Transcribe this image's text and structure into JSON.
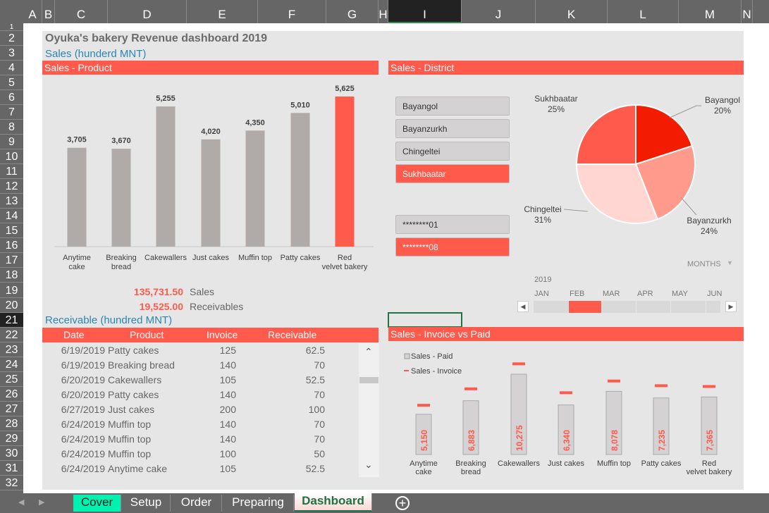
{
  "columns": [
    "A",
    "B",
    "C",
    "D",
    "E",
    "F",
    "G",
    "H",
    "I",
    "J",
    "K",
    "L",
    "M",
    "N"
  ],
  "rows": [
    "1",
    "2",
    "3",
    "4",
    "5",
    "6",
    "7",
    "8",
    "9",
    "10",
    "11",
    "12",
    "13",
    "14",
    "15",
    "16",
    "17",
    "18",
    "19",
    "20",
    "21",
    "22",
    "23",
    "24",
    "25",
    "26",
    "27",
    "28",
    "29",
    "30",
    "31",
    "32"
  ],
  "title": "Oyuka's bakery Revenue dashboard 2019",
  "sales_subtitle": "Sales (hunderd MNT)",
  "receivable_subtitle": "Receivable (hundred MNT)",
  "banners": {
    "product": "Sales - Product",
    "district": "Sales - District",
    "invoice": "Sales - Invoice vs Paid"
  },
  "totals": {
    "sales_value": "135,731.50",
    "sales_label": "Sales",
    "receivables_value": "19,525.00",
    "receivables_label": "Receivables"
  },
  "slicers": {
    "districts": [
      {
        "label": "Bayangol",
        "selected": false
      },
      {
        "label": "Bayanzurkh",
        "selected": false
      },
      {
        "label": "Chingeltei",
        "selected": false
      },
      {
        "label": "Sukhbaatar",
        "selected": true
      }
    ],
    "codes": [
      {
        "label": "********01",
        "selected": false
      },
      {
        "label": "********08",
        "selected": true
      }
    ]
  },
  "timeline": {
    "level": "MONTHS",
    "year": "2019",
    "months": [
      "JAN",
      "FEB",
      "MAR",
      "APR",
      "MAY",
      "JUN"
    ],
    "selected": "FEB"
  },
  "table": {
    "headers": [
      "Date",
      "Product",
      "Invoice",
      "Receivable"
    ],
    "rows": [
      [
        "6/19/2019",
        "Patty cakes",
        "125",
        "62.5"
      ],
      [
        "6/19/2019",
        "Breaking bread",
        "140",
        "70"
      ],
      [
        "6/20/2019",
        "Cakewallers",
        "105",
        "52.5"
      ],
      [
        "6/20/2019",
        "Patty cakes",
        "140",
        "70"
      ],
      [
        "6/27/2019",
        "Just cakes",
        "200",
        "100"
      ],
      [
        "6/24/2019",
        "Muffin top",
        "140",
        "70"
      ],
      [
        "6/24/2019",
        "Muffin top",
        "140",
        "70"
      ],
      [
        "6/24/2019",
        "Muffin top",
        "100",
        "50"
      ],
      [
        "6/24/2019",
        "Anytime cake",
        "105",
        "52.5"
      ]
    ]
  },
  "chart_data": [
    {
      "type": "bar",
      "categories": [
        "Anytime cake",
        "Breaking bread",
        "Cakewallers",
        "Just cakes",
        "Muffin top",
        "Patty cakes",
        "Red velvet bakery"
      ],
      "values": [
        3705,
        3670,
        5255,
        4020,
        4350,
        5010,
        5625
      ],
      "labels": [
        "3,705",
        "3,670",
        "5,255",
        "4,020",
        "4,350",
        "5,010",
        "5,625"
      ],
      "highlight": "Red velvet bakery",
      "colors": {
        "bar": "#b0aba9",
        "highlight": "#ff5a4b"
      }
    },
    {
      "type": "pie",
      "categories": [
        "Bayangol",
        "Bayanzurkh",
        "Chingeltei",
        "Sukhbaatar"
      ],
      "values": [
        20,
        24,
        31,
        25
      ],
      "labels": [
        "20%",
        "24%",
        "31%",
        "25%"
      ],
      "colors": [
        "#f41c00",
        "#ff9a8c",
        "#ffd6d2",
        "#ff5a4b"
      ]
    },
    {
      "type": "bar",
      "categories": [
        "Anytime cake",
        "Breaking bread",
        "Cakewallers",
        "Just cakes",
        "Muffin top",
        "Patty cakes",
        "Red velvet bakery"
      ],
      "series": [
        {
          "name": "Sales - Paid",
          "values": [
            5150,
            6883,
            10275,
            6340,
            8078,
            7235,
            7365
          ],
          "labels": [
            "5,150",
            "6,883",
            "10,275",
            "6,340",
            "8,078",
            "7,235",
            "7,365"
          ],
          "color": "#d4d2d2"
        },
        {
          "name": "Sales - Invoice",
          "values": [
            6300,
            8400,
            11600,
            7900,
            9400,
            8800,
            8700
          ],
          "color": "#ff5a4b"
        }
      ]
    }
  ],
  "sheet_tabs": [
    {
      "label": "Cover",
      "active": false
    },
    {
      "label": "Setup",
      "active": false
    },
    {
      "label": "Order",
      "active": false
    },
    {
      "label": "Preparing",
      "active": false
    },
    {
      "label": "Dashboard",
      "active": true
    }
  ]
}
